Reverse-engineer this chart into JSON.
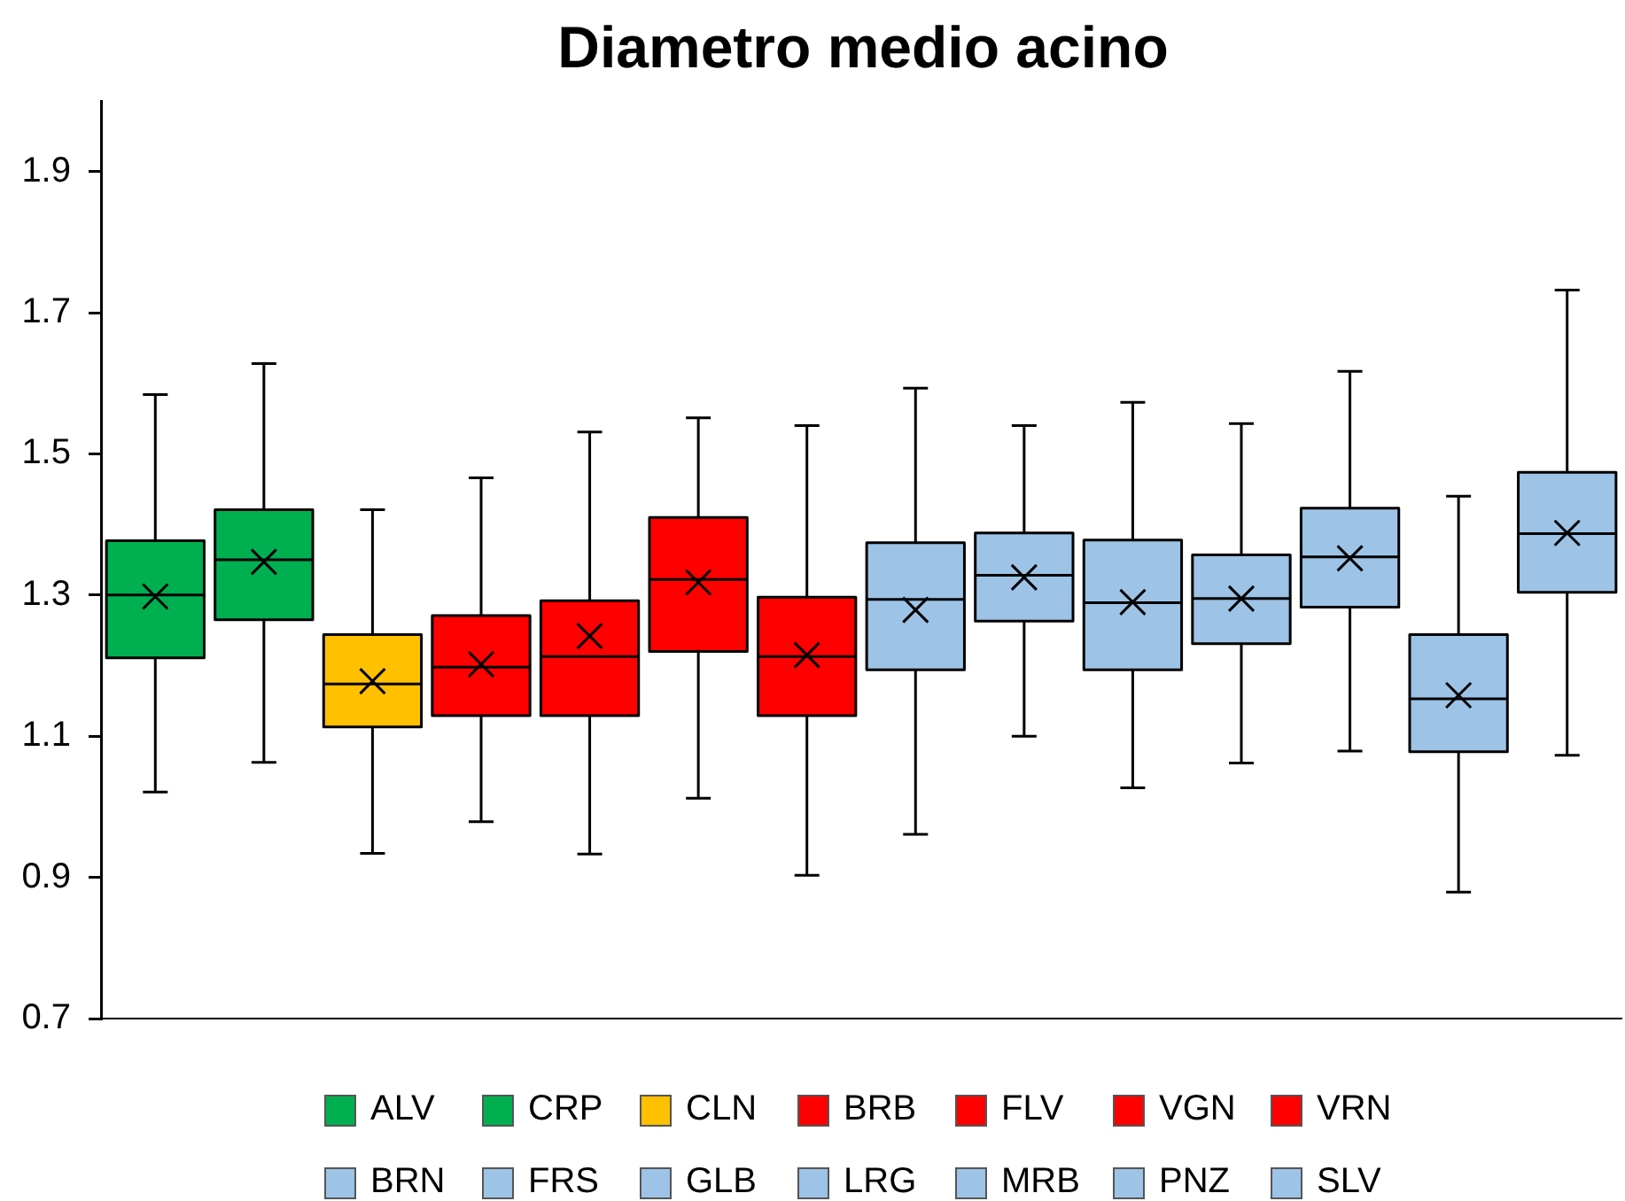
{
  "chart_data": {
    "type": "box",
    "title": "Diametro medio acino",
    "categories": [
      null,
      null,
      null,
      null,
      null,
      null,
      null,
      null,
      null,
      null,
      null,
      null,
      null,
      null
    ],
    "ylim": [
      0.7,
      2.0
    ],
    "yticks": [
      0.7,
      0.9,
      1.1,
      1.3,
      1.5,
      1.7,
      1.9
    ],
    "tick_labels": "y",
    "legend": "bottom",
    "marker": "cross",
    "series": [
      {
        "name": "ALV",
        "color": "#00b050",
        "boxes": [
          {
            "low": 1.021,
            "q1": 1.211,
            "median": 1.3,
            "q3": 1.377,
            "high": 1.584,
            "mean": 1.298
          },
          null,
          null,
          null,
          null,
          null,
          null,
          null,
          null,
          null,
          null,
          null,
          null,
          null
        ]
      },
      {
        "name": "CRP",
        "color": "#00b050",
        "boxes": [
          null,
          {
            "low": 1.063,
            "q1": 1.265,
            "median": 1.35,
            "q3": 1.421,
            "high": 1.628,
            "mean": 1.347
          },
          null,
          null,
          null,
          null,
          null,
          null,
          null,
          null,
          null,
          null,
          null,
          null
        ]
      },
      {
        "name": "CLN",
        "color": "#ffc000",
        "boxes": [
          null,
          null,
          {
            "low": 0.934,
            "q1": 1.113,
            "median": 1.174,
            "q3": 1.244,
            "high": 1.421,
            "mean": 1.178
          },
          null,
          null,
          null,
          null,
          null,
          null,
          null,
          null,
          null,
          null,
          null
        ]
      },
      {
        "name": "BRB",
        "color": "#ff0000",
        "boxes": [
          null,
          null,
          null,
          {
            "low": 0.979,
            "q1": 1.129,
            "median": 1.198,
            "q3": 1.271,
            "high": 1.466,
            "mean": 1.202
          },
          null,
          null,
          null,
          null,
          null,
          null,
          null,
          null,
          null,
          null
        ]
      },
      {
        "name": "FLV",
        "color": "#ff0000",
        "boxes": [
          null,
          null,
          null,
          null,
          {
            "low": 0.933,
            "q1": 1.129,
            "median": 1.213,
            "q3": 1.292,
            "high": 1.531,
            "mean": 1.242
          },
          null,
          null,
          null,
          null,
          null,
          null,
          null,
          null,
          null
        ]
      },
      {
        "name": "VGN",
        "color": "#ff0000",
        "boxes": [
          null,
          null,
          null,
          null,
          null,
          {
            "low": 1.012,
            "q1": 1.22,
            "median": 1.322,
            "q3": 1.41,
            "high": 1.551,
            "mean": 1.318
          },
          null,
          null,
          null,
          null,
          null,
          null,
          null,
          null
        ]
      },
      {
        "name": "VRN",
        "color": "#ff0000",
        "boxes": [
          null,
          null,
          null,
          null,
          null,
          null,
          {
            "low": 0.903,
            "q1": 1.129,
            "median": 1.213,
            "q3": 1.297,
            "high": 1.54,
            "mean": 1.215
          },
          null,
          null,
          null,
          null,
          null,
          null,
          null
        ]
      },
      {
        "name": "BRN",
        "color": "#9dc3e6",
        "boxes": [
          null,
          null,
          null,
          null,
          null,
          null,
          null,
          {
            "low": 0.961,
            "q1": 1.194,
            "median": 1.294,
            "q3": 1.374,
            "high": 1.593,
            "mean": 1.279
          },
          null,
          null,
          null,
          null,
          null,
          null
        ]
      },
      {
        "name": "FRS",
        "color": "#9dc3e6",
        "boxes": [
          null,
          null,
          null,
          null,
          null,
          null,
          null,
          null,
          {
            "low": 1.1,
            "q1": 1.263,
            "median": 1.328,
            "q3": 1.388,
            "high": 1.54,
            "mean": 1.325
          },
          null,
          null,
          null,
          null,
          null
        ]
      },
      {
        "name": "GLB",
        "color": "#9dc3e6",
        "boxes": [
          null,
          null,
          null,
          null,
          null,
          null,
          null,
          null,
          null,
          {
            "low": 1.027,
            "q1": 1.194,
            "median": 1.289,
            "q3": 1.378,
            "high": 1.573,
            "mean": 1.29
          },
          null,
          null,
          null,
          null
        ]
      },
      {
        "name": "LRG",
        "color": "#9dc3e6",
        "boxes": [
          null,
          null,
          null,
          null,
          null,
          null,
          null,
          null,
          null,
          null,
          {
            "low": 1.062,
            "q1": 1.231,
            "median": 1.295,
            "q3": 1.357,
            "high": 1.543,
            "mean": 1.295
          },
          null,
          null,
          null
        ]
      },
      {
        "name": "MRB",
        "color": "#9dc3e6",
        "boxes": [
          null,
          null,
          null,
          null,
          null,
          null,
          null,
          null,
          null,
          null,
          null,
          {
            "low": 1.079,
            "q1": 1.283,
            "median": 1.354,
            "q3": 1.423,
            "high": 1.617,
            "mean": 1.352
          },
          null,
          null
        ]
      },
      {
        "name": "PNZ",
        "color": "#9dc3e6",
        "boxes": [
          null,
          null,
          null,
          null,
          null,
          null,
          null,
          null,
          null,
          null,
          null,
          null,
          {
            "low": 0.879,
            "q1": 1.078,
            "median": 1.153,
            "q3": 1.244,
            "high": 1.44,
            "mean": 1.158
          },
          null
        ]
      },
      {
        "name": "SLV",
        "color": "#9dc3e6",
        "boxes": [
          null,
          null,
          null,
          null,
          null,
          null,
          null,
          null,
          null,
          null,
          null,
          null,
          null,
          {
            "low": 1.073,
            "q1": 1.304,
            "median": 1.387,
            "q3": 1.474,
            "high": 1.732,
            "mean": 1.388
          }
        ]
      }
    ]
  }
}
